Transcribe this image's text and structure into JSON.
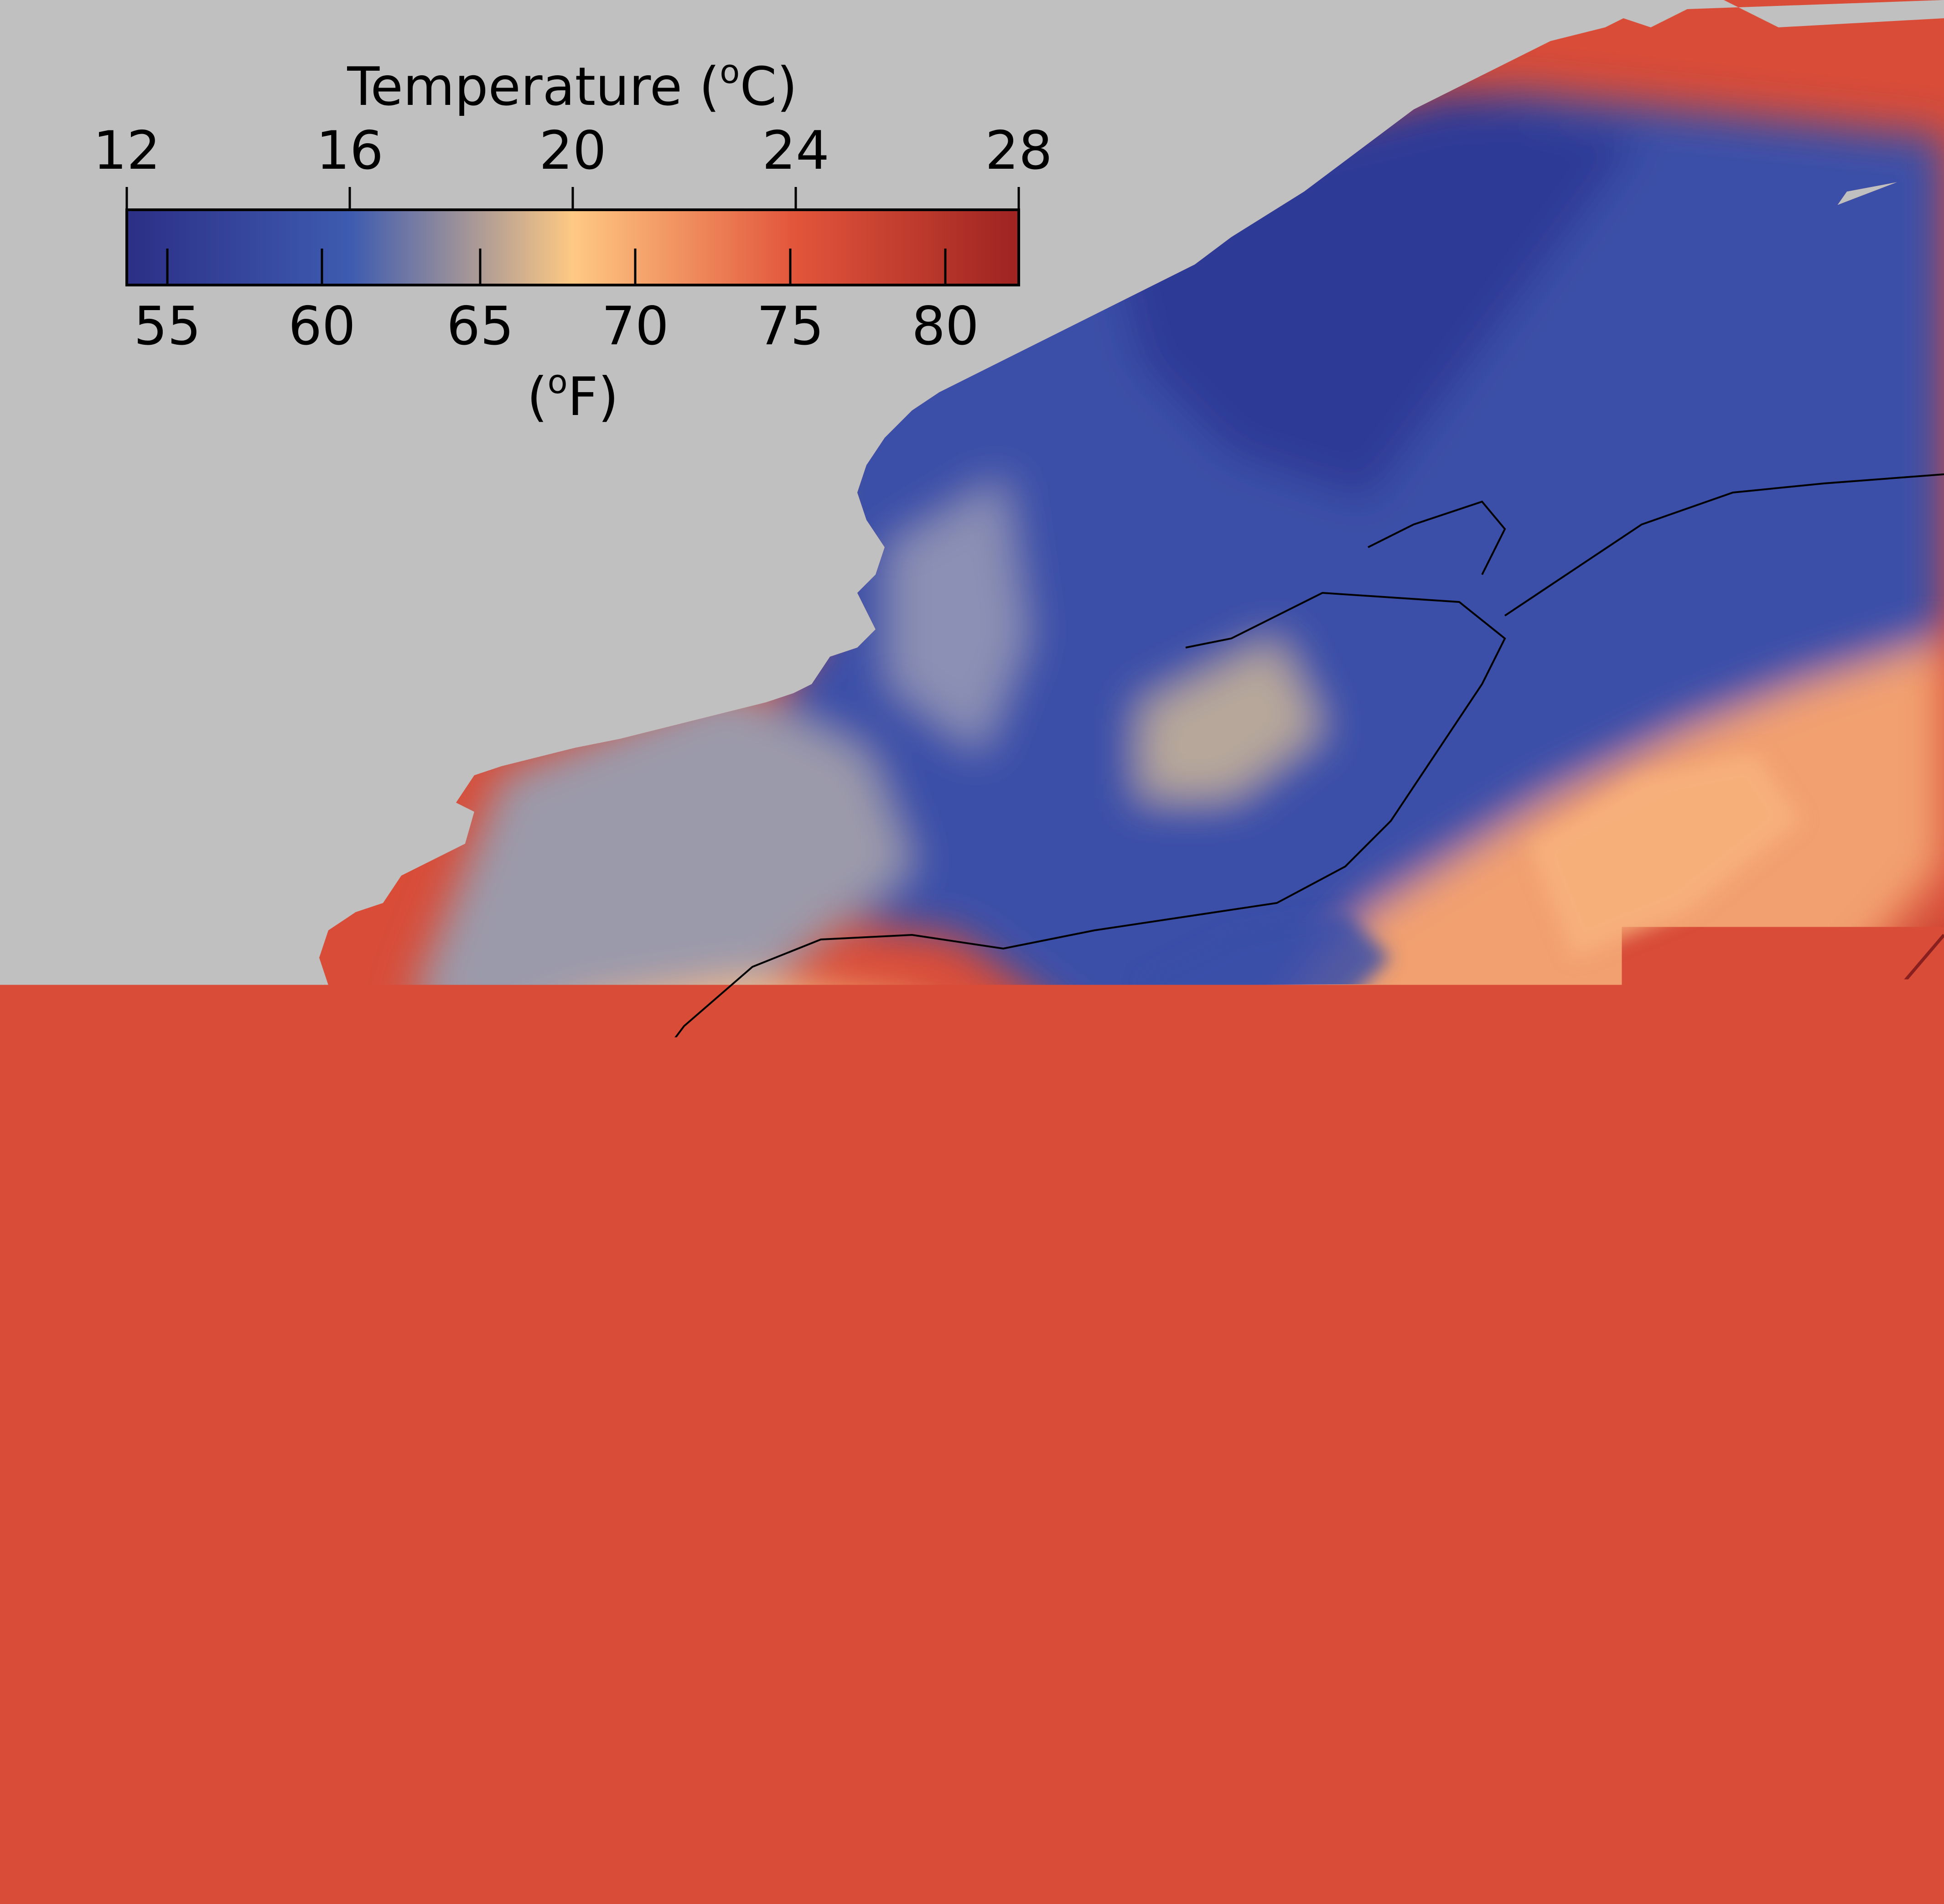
{
  "colorbar": {
    "title_prefix": "Temperature (",
    "title_sup": "o",
    "title_suffix": "C)",
    "celsius_ticks": [
      "12",
      "16",
      "20",
      "24",
      "28"
    ],
    "fahrenheit_ticks": [
      "55",
      "60",
      "65",
      "70",
      "75",
      "80"
    ],
    "fahrenheit_label_open": "(",
    "fahrenheit_label_sup": "o",
    "fahrenheit_label_close": "F)",
    "celsius_range": [
      12,
      28
    ],
    "colormap": [
      {
        "at": 0.0,
        "color": "#2c2f86"
      },
      {
        "at": 0.25,
        "color": "#3d5bb0"
      },
      {
        "at": 0.5,
        "color": "#fec983"
      },
      {
        "at": 0.75,
        "color": "#e2553b"
      },
      {
        "at": 1.0,
        "color": "#9e2321"
      }
    ]
  },
  "map": {
    "land_color": "#c0c0c0",
    "contour_color": "#000000",
    "warm_contour_color": "#8a1f1f"
  }
}
